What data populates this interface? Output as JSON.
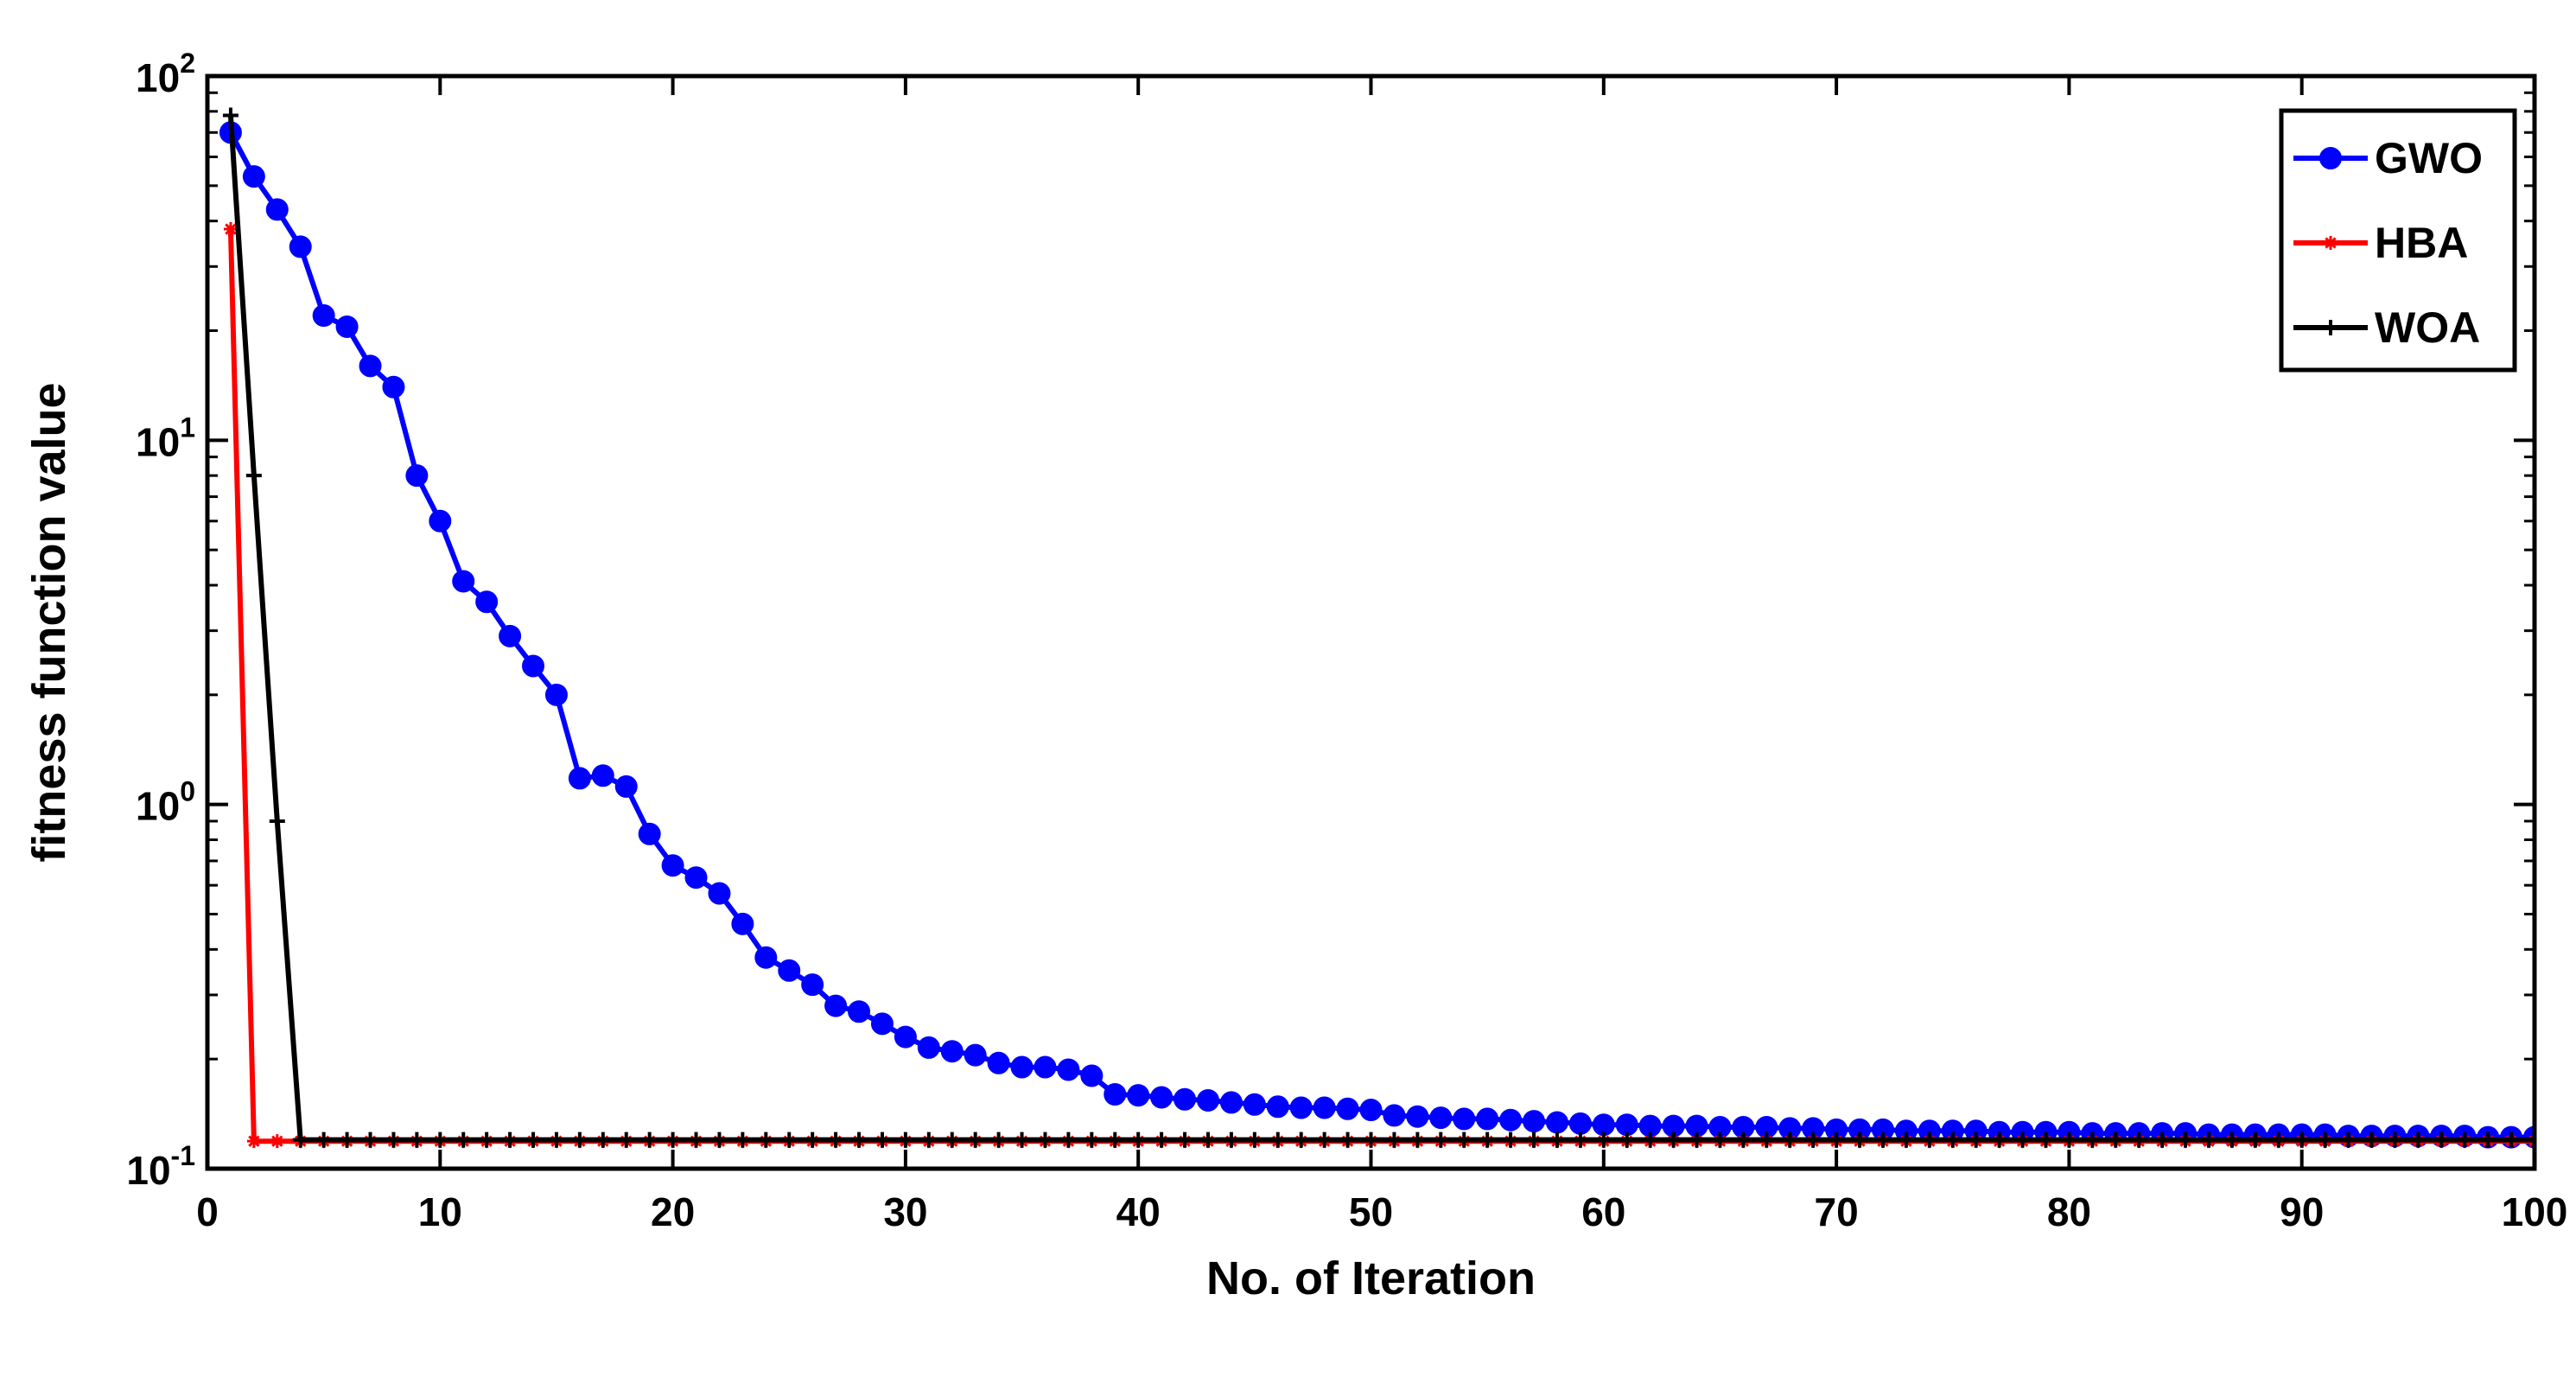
{
  "chart_data": {
    "type": "line",
    "title": "",
    "xlabel": "No. of Iteration",
    "ylabel": "fitness function value",
    "xlim": [
      0,
      100
    ],
    "ylim": [
      0.1,
      100
    ],
    "yscale": "log",
    "xticks": [
      "0",
      "10",
      "20",
      "30",
      "40",
      "50",
      "60",
      "70",
      "80",
      "90",
      "100"
    ],
    "yticks": [
      {
        "value": 0.1,
        "base": "10",
        "exp": "-1"
      },
      {
        "value": 1,
        "base": "10",
        "exp": "0"
      },
      {
        "value": 10,
        "base": "10",
        "exp": "1"
      },
      {
        "value": 100,
        "base": "10",
        "exp": "2"
      }
    ],
    "grid": false,
    "legend_position": "top-right",
    "series": [
      {
        "name": "GWO",
        "color": "#0000ff",
        "marker": "circle",
        "x": [
          1,
          2,
          3,
          4,
          5,
          6,
          7,
          8,
          9,
          10,
          11,
          12,
          13,
          14,
          15,
          16,
          17,
          18,
          19,
          20,
          21,
          22,
          23,
          24,
          25,
          26,
          27,
          28,
          29,
          30,
          31,
          32,
          33,
          34,
          35,
          36,
          37,
          38,
          39,
          40,
          41,
          42,
          43,
          44,
          45,
          46,
          47,
          48,
          49,
          50,
          51,
          52,
          53,
          54,
          55,
          56,
          57,
          58,
          59,
          60,
          61,
          62,
          63,
          64,
          65,
          66,
          67,
          68,
          69,
          70,
          71,
          72,
          73,
          74,
          75,
          76,
          77,
          78,
          79,
          80,
          81,
          82,
          83,
          84,
          85,
          86,
          87,
          88,
          89,
          90,
          91,
          92,
          93,
          94,
          95,
          96,
          97,
          98,
          99,
          100
        ],
        "y": [
          70,
          53,
          43,
          34,
          22,
          20.5,
          16,
          14,
          8,
          6,
          4.1,
          3.6,
          2.9,
          2.4,
          2.0,
          1.18,
          1.2,
          1.12,
          0.83,
          0.68,
          0.63,
          0.57,
          0.47,
          0.38,
          0.35,
          0.32,
          0.28,
          0.27,
          0.25,
          0.23,
          0.215,
          0.21,
          0.205,
          0.195,
          0.19,
          0.19,
          0.187,
          0.18,
          0.16,
          0.159,
          0.157,
          0.155,
          0.154,
          0.152,
          0.15,
          0.148,
          0.147,
          0.147,
          0.146,
          0.145,
          0.14,
          0.139,
          0.138,
          0.137,
          0.137,
          0.136,
          0.135,
          0.134,
          0.133,
          0.132,
          0.132,
          0.131,
          0.131,
          0.131,
          0.13,
          0.13,
          0.13,
          0.129,
          0.129,
          0.128,
          0.128,
          0.128,
          0.127,
          0.127,
          0.127,
          0.127,
          0.126,
          0.126,
          0.126,
          0.126,
          0.125,
          0.125,
          0.125,
          0.125,
          0.125,
          0.124,
          0.124,
          0.124,
          0.124,
          0.124,
          0.124,
          0.123,
          0.123,
          0.123,
          0.123,
          0.123,
          0.123,
          0.122,
          0.122,
          0.122
        ]
      },
      {
        "name": "HBA",
        "color": "#ff0000",
        "marker": "star",
        "x": [
          1,
          2,
          3,
          4,
          5,
          6,
          7,
          8,
          9,
          10,
          11,
          12,
          13,
          14,
          15,
          16,
          17,
          18,
          19,
          20,
          21,
          22,
          23,
          24,
          25,
          26,
          27,
          28,
          29,
          30,
          31,
          32,
          33,
          34,
          35,
          36,
          37,
          38,
          39,
          40,
          41,
          42,
          43,
          44,
          45,
          46,
          47,
          48,
          49,
          50,
          51,
          52,
          53,
          54,
          55,
          56,
          57,
          58,
          59,
          60,
          61,
          62,
          63,
          64,
          65,
          66,
          67,
          68,
          69,
          70,
          71,
          72,
          73,
          74,
          75,
          76,
          77,
          78,
          79,
          80,
          81,
          82,
          83,
          84,
          85,
          86,
          87,
          88,
          89,
          90,
          91,
          92,
          93,
          94,
          95,
          96,
          97,
          98,
          99,
          100
        ],
        "y": [
          38,
          0.119,
          0.119,
          0.119,
          0.119,
          0.119,
          0.119,
          0.119,
          0.119,
          0.119,
          0.119,
          0.119,
          0.119,
          0.119,
          0.119,
          0.119,
          0.119,
          0.119,
          0.119,
          0.119,
          0.119,
          0.119,
          0.119,
          0.119,
          0.119,
          0.119,
          0.119,
          0.119,
          0.119,
          0.119,
          0.119,
          0.119,
          0.119,
          0.119,
          0.119,
          0.119,
          0.119,
          0.119,
          0.119,
          0.119,
          0.119,
          0.119,
          0.119,
          0.119,
          0.119,
          0.119,
          0.119,
          0.119,
          0.119,
          0.119,
          0.119,
          0.119,
          0.119,
          0.119,
          0.119,
          0.119,
          0.119,
          0.119,
          0.119,
          0.119,
          0.119,
          0.119,
          0.119,
          0.119,
          0.119,
          0.119,
          0.119,
          0.119,
          0.119,
          0.119,
          0.119,
          0.119,
          0.119,
          0.119,
          0.119,
          0.119,
          0.119,
          0.119,
          0.119,
          0.119,
          0.119,
          0.119,
          0.119,
          0.119,
          0.119,
          0.119,
          0.119,
          0.119,
          0.119,
          0.119,
          0.119,
          0.119,
          0.119,
          0.119,
          0.119,
          0.119,
          0.119,
          0.119,
          0.119,
          0.119
        ]
      },
      {
        "name": "WOA",
        "color": "#000000",
        "marker": "plus",
        "x": [
          1,
          2,
          3,
          4,
          5,
          6,
          7,
          8,
          9,
          10,
          11,
          12,
          13,
          14,
          15,
          16,
          17,
          18,
          19,
          20,
          21,
          22,
          23,
          24,
          25,
          26,
          27,
          28,
          29,
          30,
          31,
          32,
          33,
          34,
          35,
          36,
          37,
          38,
          39,
          40,
          41,
          42,
          43,
          44,
          45,
          46,
          47,
          48,
          49,
          50,
          51,
          52,
          53,
          54,
          55,
          56,
          57,
          58,
          59,
          60,
          61,
          62,
          63,
          64,
          65,
          66,
          67,
          68,
          69,
          70,
          71,
          72,
          73,
          74,
          75,
          76,
          77,
          78,
          79,
          80,
          81,
          82,
          83,
          84,
          85,
          86,
          87,
          88,
          89,
          90,
          91,
          92,
          93,
          94,
          95,
          96,
          97,
          98,
          99,
          100
        ],
        "y": [
          78,
          8,
          0.9,
          0.12,
          0.12,
          0.12,
          0.12,
          0.12,
          0.12,
          0.12,
          0.12,
          0.12,
          0.12,
          0.12,
          0.12,
          0.12,
          0.12,
          0.12,
          0.12,
          0.12,
          0.12,
          0.12,
          0.12,
          0.12,
          0.12,
          0.12,
          0.12,
          0.12,
          0.12,
          0.12,
          0.12,
          0.12,
          0.12,
          0.12,
          0.12,
          0.12,
          0.12,
          0.12,
          0.12,
          0.12,
          0.12,
          0.12,
          0.12,
          0.12,
          0.12,
          0.12,
          0.12,
          0.12,
          0.12,
          0.12,
          0.12,
          0.12,
          0.12,
          0.12,
          0.12,
          0.12,
          0.12,
          0.12,
          0.12,
          0.12,
          0.12,
          0.12,
          0.12,
          0.12,
          0.12,
          0.12,
          0.12,
          0.12,
          0.12,
          0.12,
          0.12,
          0.12,
          0.12,
          0.12,
          0.12,
          0.12,
          0.12,
          0.12,
          0.12,
          0.12,
          0.12,
          0.12,
          0.12,
          0.12,
          0.12,
          0.12,
          0.12,
          0.12,
          0.12,
          0.12,
          0.12,
          0.12,
          0.12,
          0.12,
          0.12,
          0.12,
          0.12,
          0.12,
          0.12,
          0.12
        ]
      }
    ]
  }
}
